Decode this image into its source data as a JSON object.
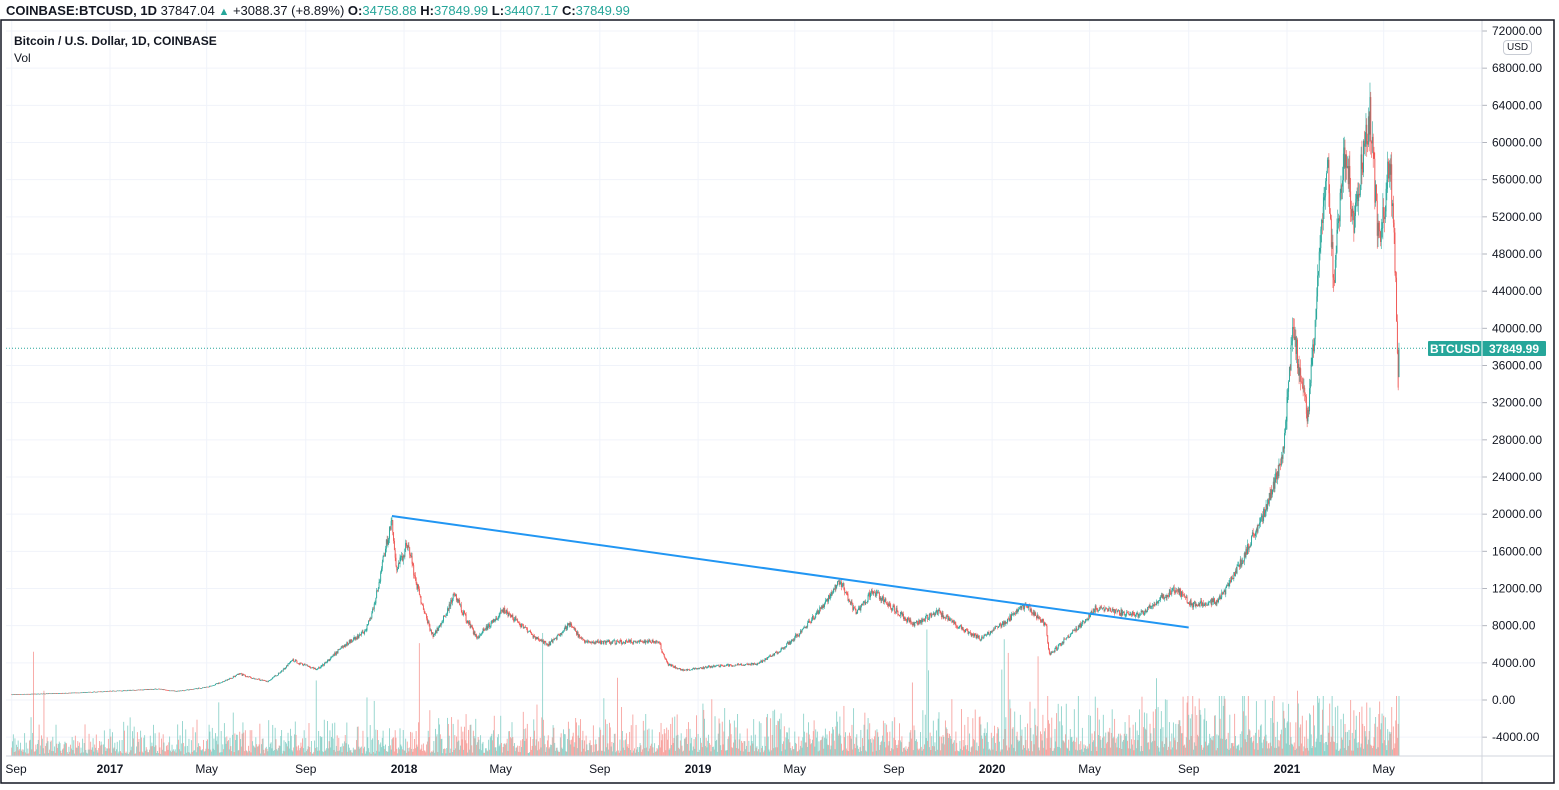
{
  "header": {
    "symbol": "COINBASE:BTCUSD, 1D",
    "last": "37847.04",
    "change": "+3088.37 (+8.89%)",
    "o_label": "O:",
    "o": "34758.88",
    "h_label": "H:",
    "h": "37849.99",
    "l_label": "L:",
    "l": "34407.17",
    "c_label": "C:",
    "c": "37849.99"
  },
  "legend": {
    "title": "Bitcoin / U.S. Dollar, 1D, COINBASE",
    "volume": "Vol"
  },
  "currency_badge": "USD",
  "price_tag": {
    "symbol": "BTCUSD",
    "value": "37849.99",
    "price": 37849.99
  },
  "colors": {
    "up": "#26a69a",
    "down": "#ef5350",
    "vol_up": "#8fd3cb",
    "vol_down": "#f7a4a0",
    "trendline": "#2196f3",
    "grid": "#f0f3fa"
  },
  "chart_data": {
    "type": "candlestick",
    "title": "Bitcoin / U.S. Dollar, 1D, COINBASE",
    "ylim": [
      -4000,
      72000
    ],
    "y_ticks": [
      "72000.00",
      "68000.00",
      "64000.00",
      "60000.00",
      "56000.00",
      "52000.00",
      "48000.00",
      "44000.00",
      "40000.00",
      "36000.00",
      "32000.00",
      "28000.00",
      "24000.00",
      "20000.00",
      "16000.00",
      "12000.00",
      "8000.00",
      "4000.00",
      "0.00",
      "-4000.00"
    ],
    "x_ticks": [
      {
        "label": "Sep",
        "date": "2016-09-01",
        "bold": false
      },
      {
        "label": "2017",
        "date": "2017-01-01",
        "bold": true
      },
      {
        "label": "May",
        "date": "2017-05-01",
        "bold": false
      },
      {
        "label": "Sep",
        "date": "2017-09-01",
        "bold": false
      },
      {
        "label": "2018",
        "date": "2018-01-01",
        "bold": true
      },
      {
        "label": "May",
        "date": "2018-05-01",
        "bold": false
      },
      {
        "label": "Sep",
        "date": "2018-09-01",
        "bold": false
      },
      {
        "label": "2019",
        "date": "2019-01-01",
        "bold": true
      },
      {
        "label": "May",
        "date": "2019-05-01",
        "bold": false
      },
      {
        "label": "Sep",
        "date": "2019-09-01",
        "bold": false
      },
      {
        "label": "2020",
        "date": "2020-01-01",
        "bold": true
      },
      {
        "label": "May",
        "date": "2020-05-01",
        "bold": false
      },
      {
        "label": "Sep",
        "date": "2020-09-01",
        "bold": false
      },
      {
        "label": "2021",
        "date": "2021-01-01",
        "bold": true
      },
      {
        "label": "May",
        "date": "2021-05-01",
        "bold": false
      }
    ],
    "close_keypoints": [
      [
        "2016-09-01",
        600
      ],
      [
        "2016-11-01",
        720
      ],
      [
        "2017-01-01",
        960
      ],
      [
        "2017-03-01",
        1190
      ],
      [
        "2017-03-25",
        950
      ],
      [
        "2017-05-01",
        1400
      ],
      [
        "2017-06-10",
        2800
      ],
      [
        "2017-07-15",
        2000
      ],
      [
        "2017-08-15",
        4300
      ],
      [
        "2017-09-15",
        3300
      ],
      [
        "2017-10-15",
        5700
      ],
      [
        "2017-11-15",
        7500
      ],
      [
        "2017-12-08",
        16000
      ],
      [
        "2017-12-17",
        19500
      ],
      [
        "2017-12-22",
        14000
      ],
      [
        "2018-01-06",
        17000
      ],
      [
        "2018-02-06",
        6900
      ],
      [
        "2018-03-05",
        11500
      ],
      [
        "2018-04-01",
        6800
      ],
      [
        "2018-05-05",
        9800
      ],
      [
        "2018-06-28",
        5900
      ],
      [
        "2018-07-25",
        8200
      ],
      [
        "2018-08-14",
        6200
      ],
      [
        "2018-11-13",
        6300
      ],
      [
        "2018-11-25",
        3800
      ],
      [
        "2018-12-15",
        3200
      ],
      [
        "2019-01-15",
        3600
      ],
      [
        "2019-03-15",
        3900
      ],
      [
        "2019-04-10",
        5200
      ],
      [
        "2019-05-15",
        8000
      ],
      [
        "2019-06-26",
        13000
      ],
      [
        "2019-07-16",
        9400
      ],
      [
        "2019-08-06",
        11800
      ],
      [
        "2019-09-25",
        8200
      ],
      [
        "2019-10-26",
        9500
      ],
      [
        "2019-12-17",
        6600
      ],
      [
        "2020-02-12",
        10300
      ],
      [
        "2020-03-08",
        8000
      ],
      [
        "2020-03-12",
        4900
      ],
      [
        "2020-04-01",
        6600
      ],
      [
        "2020-05-08",
        9900
      ],
      [
        "2020-07-01",
        9100
      ],
      [
        "2020-07-28",
        11000
      ],
      [
        "2020-08-17",
        12000
      ],
      [
        "2020-09-05",
        10200
      ],
      [
        "2020-10-08",
        10700
      ],
      [
        "2020-10-25",
        13100
      ],
      [
        "2020-11-25",
        18700
      ],
      [
        "2020-12-01",
        19400
      ],
      [
        "2020-12-27",
        26500
      ],
      [
        "2021-01-08",
        40500
      ],
      [
        "2021-01-27",
        30400
      ],
      [
        "2021-02-08",
        46000
      ],
      [
        "2021-02-21",
        57000
      ],
      [
        "2021-02-28",
        45000
      ],
      [
        "2021-03-13",
        60000
      ],
      [
        "2021-03-25",
        52000
      ],
      [
        "2021-04-14",
        63500
      ],
      [
        "2021-04-25",
        49000
      ],
      [
        "2021-05-09",
        58500
      ],
      [
        "2021-05-16",
        46000
      ],
      [
        "2021-05-19",
        34700
      ],
      [
        "2021-05-20",
        37849.99
      ]
    ],
    "trendline": {
      "start": [
        "2017-12-17",
        19800
      ],
      "end": [
        "2020-09-01",
        7800
      ]
    }
  }
}
